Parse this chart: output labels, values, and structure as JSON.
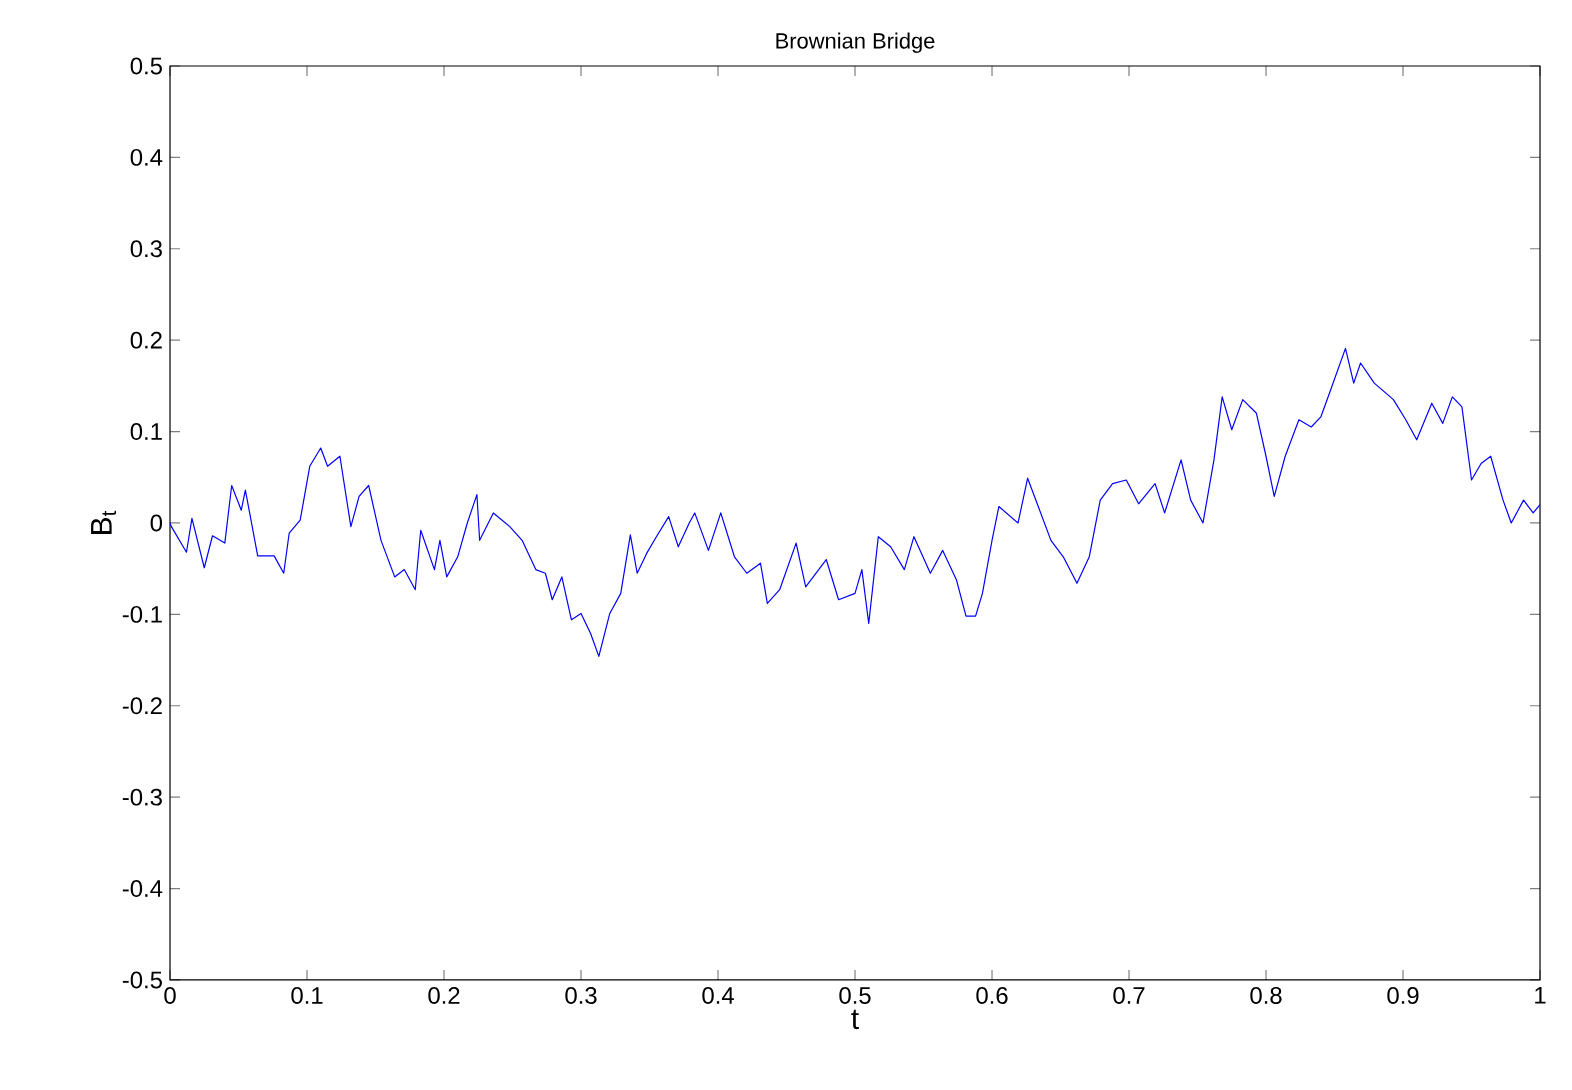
{
  "chart_data": {
    "type": "line",
    "title": "Brownian Bridge",
    "xlabel": "t",
    "ylabel": "B$_{t}$",
    "xlim": [
      0,
      1
    ],
    "ylim": [
      -0.5,
      0.5
    ],
    "xticks": [
      0,
      0.1,
      0.2,
      0.3,
      0.4,
      0.5,
      0.6,
      0.7,
      0.8,
      0.9,
      1
    ],
    "yticks": [
      -0.5,
      -0.4,
      -0.3,
      -0.2,
      -0.1,
      0,
      0.1,
      0.2,
      0.3,
      0.4,
      0.5
    ],
    "series": [
      {
        "color": "#0000ff",
        "x": [
          0,
          0.001,
          0.012,
          0.016,
          0.025,
          0.031,
          0.04,
          0.045,
          0.052,
          0.055,
          0.064,
          0.076,
          0.083,
          0.087,
          0.095,
          0.102,
          0.11,
          0.115,
          0.124,
          0.132,
          0.138,
          0.145,
          0.154,
          0.164,
          0.171,
          0.179,
          0.183,
          0.193,
          0.197,
          0.202,
          0.21,
          0.217,
          0.224,
          0.226,
          0.236,
          0.248,
          0.257,
          0.267,
          0.274,
          0.279,
          0.286,
          0.293,
          0.3,
          0.307,
          0.313,
          0.321,
          0.329,
          0.336,
          0.341,
          0.348,
          0.355,
          0.364,
          0.371,
          0.379,
          0.383,
          0.393,
          0.402,
          0.412,
          0.421,
          0.431,
          0.436,
          0.445,
          0.457,
          0.464,
          0.479,
          0.488,
          0.5,
          0.505,
          0.51,
          0.517,
          0.526,
          0.536,
          0.543,
          0.555,
          0.564,
          0.574,
          0.581,
          0.588,
          0.593,
          0.6,
          0.605,
          0.619,
          0.626,
          0.633,
          0.643,
          0.652,
          0.662,
          0.671,
          0.679,
          0.688,
          0.698,
          0.707,
          0.719,
          0.726,
          0.738,
          0.745,
          0.754,
          0.762,
          0.768,
          0.775,
          0.783,
          0.793,
          0.8,
          0.806,
          0.814,
          0.824,
          0.833,
          0.84,
          0.848,
          0.858,
          0.864,
          0.869,
          0.879,
          0.893,
          0.902,
          0.91,
          0.921,
          0.929,
          0.936,
          0.943,
          0.95,
          0.957,
          0.964,
          0.973,
          0.979,
          0.988,
          0.995,
          1
        ],
        "values": [
          0,
          -0.004,
          -0.032,
          0.005,
          -0.049,
          -0.014,
          -0.022,
          0.041,
          0.014,
          0.036,
          -0.036,
          -0.036,
          -0.055,
          -0.011,
          0.003,
          0.062,
          0.082,
          0.062,
          0.073,
          -0.004,
          0.029,
          0.041,
          -0.019,
          -0.059,
          -0.051,
          -0.073,
          -0.008,
          -0.051,
          -0.019,
          -0.059,
          -0.037,
          0.0,
          0.031,
          -0.019,
          0.011,
          -0.004,
          -0.019,
          -0.051,
          -0.055,
          -0.084,
          -0.059,
          -0.106,
          -0.099,
          -0.121,
          -0.146,
          -0.099,
          -0.077,
          -0.013,
          -0.055,
          -0.033,
          -0.015,
          0.007,
          -0.026,
          0.0,
          0.011,
          -0.03,
          0.011,
          -0.037,
          -0.055,
          -0.044,
          -0.088,
          -0.073,
          -0.022,
          -0.07,
          -0.04,
          -0.084,
          -0.077,
          -0.051,
          -0.11,
          -0.015,
          -0.026,
          -0.051,
          -0.015,
          -0.055,
          -0.03,
          -0.062,
          -0.102,
          -0.102,
          -0.077,
          -0.019,
          0.018,
          0.0,
          0.049,
          0.021,
          -0.019,
          -0.037,
          -0.066,
          -0.037,
          0.025,
          0.043,
          0.047,
          0.021,
          0.043,
          0.011,
          0.069,
          0.025,
          0.0,
          0.069,
          0.138,
          0.102,
          0.135,
          0.12,
          0.073,
          0.029,
          0.073,
          0.113,
          0.105,
          0.116,
          0.149,
          0.191,
          0.153,
          0.175,
          0.153,
          0.135,
          0.113,
          0.091,
          0.131,
          0.109,
          0.138,
          0.127,
          0.047,
          0.065,
          0.073,
          0.025,
          0.0,
          0.025,
          0.011,
          0.02
        ]
      }
    ]
  }
}
